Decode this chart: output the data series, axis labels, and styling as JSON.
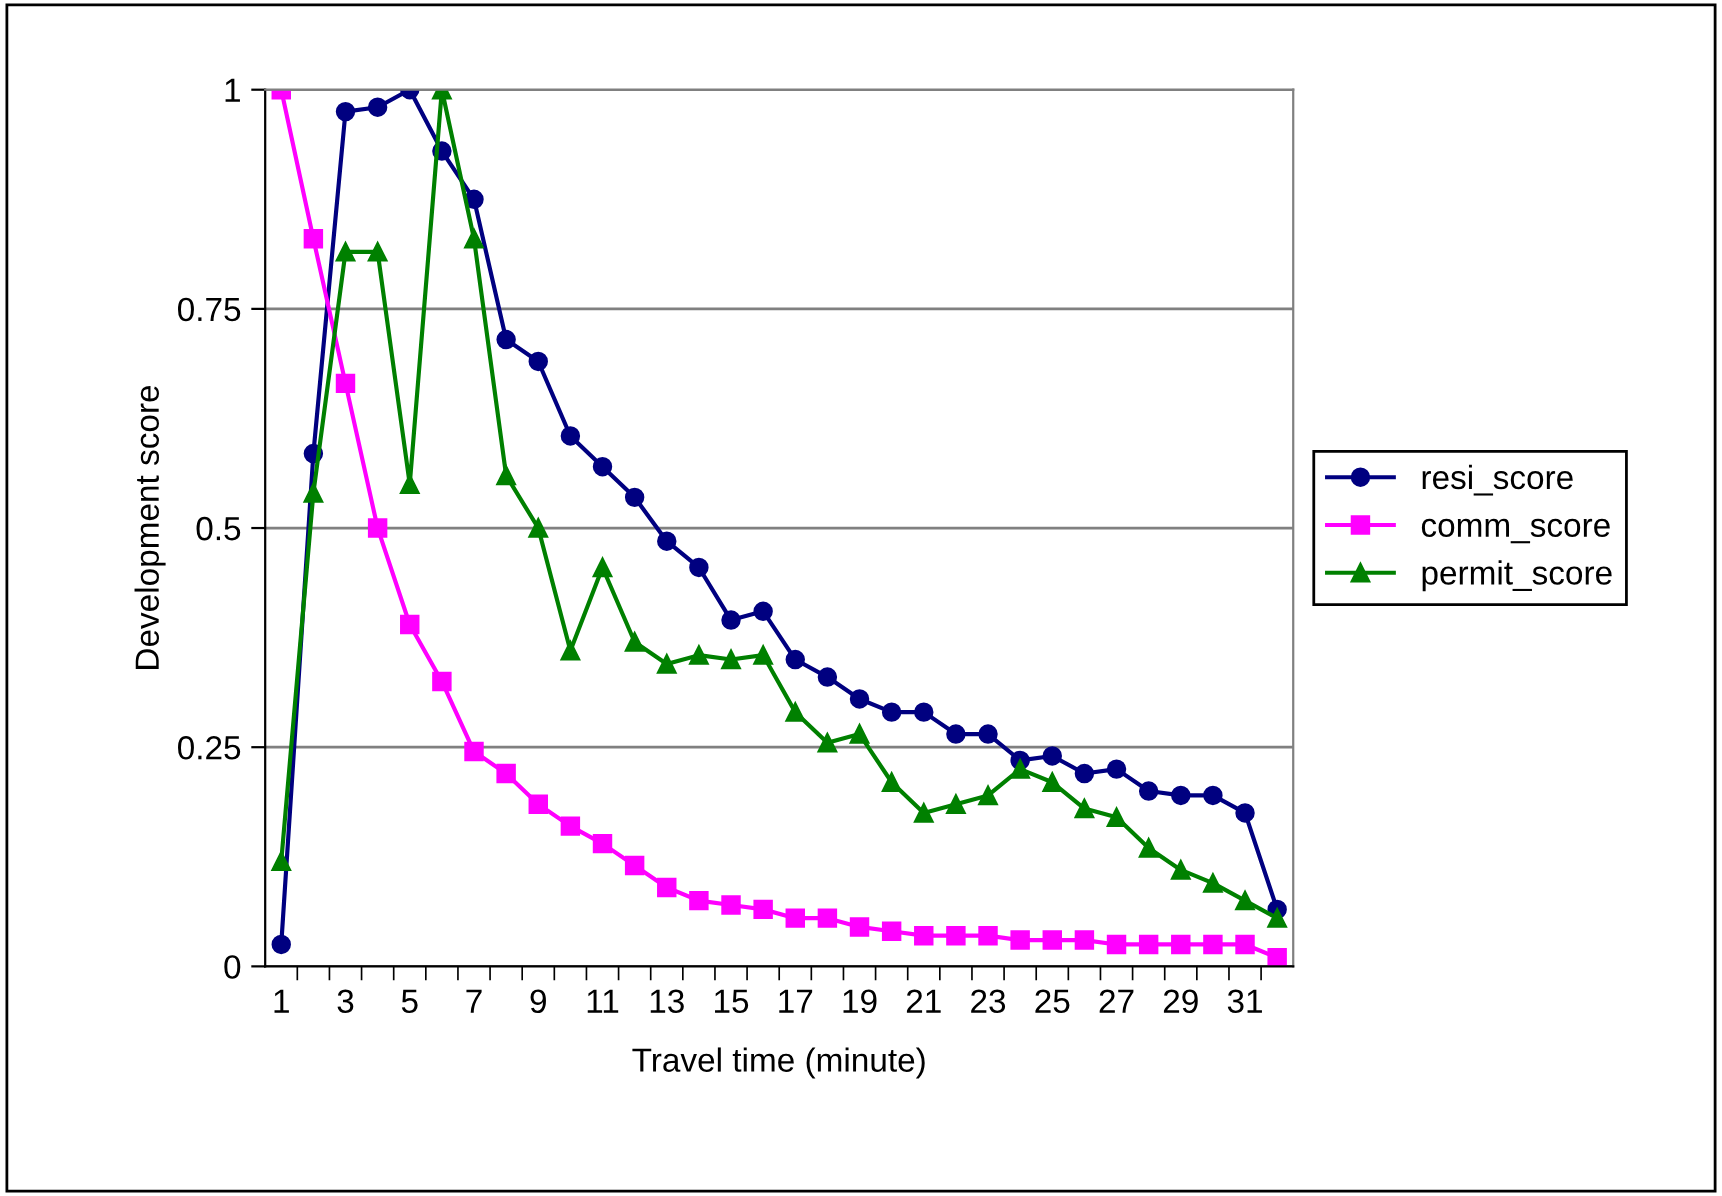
{
  "chart_data": {
    "type": "line",
    "xlabel": "Travel time (minute)",
    "ylabel": "Development score",
    "categories": [
      "1",
      null,
      "3",
      null,
      "5",
      null,
      "7",
      null,
      "9",
      null,
      "11",
      null,
      "13",
      null,
      "15",
      null,
      "17",
      null,
      "19",
      null,
      "21",
      null,
      "23",
      null,
      "25",
      null,
      "27",
      null,
      "29",
      null,
      "31",
      null
    ],
    "series": [
      {
        "name": "resi_score",
        "color": "#000080",
        "marker": "circle",
        "values": [
          0.025,
          0.585,
          0.975,
          0.98,
          1.0,
          0.93,
          0.875,
          0.715,
          0.69,
          0.605,
          0.57,
          0.535,
          0.485,
          0.455,
          0.395,
          0.405,
          0.35,
          0.33,
          0.305,
          0.29,
          0.29,
          0.265,
          0.265,
          0.235,
          0.24,
          0.22,
          0.225,
          0.2,
          0.195,
          0.195,
          0.175,
          0.065
        ]
      },
      {
        "name": "comm_score",
        "color": "#ff00ff",
        "marker": "square",
        "values": [
          1.0,
          0.83,
          0.665,
          0.5,
          0.39,
          0.325,
          0.245,
          0.22,
          0.185,
          0.16,
          0.14,
          0.115,
          0.09,
          0.075,
          0.07,
          0.065,
          0.055,
          0.055,
          0.045,
          0.04,
          0.035,
          0.035,
          0.035,
          0.03,
          0.03,
          0.03,
          0.025,
          0.025,
          0.025,
          0.025,
          0.025,
          0.01
        ]
      },
      {
        "name": "permit_score",
        "color": "#008000",
        "marker": "triangle",
        "values": [
          0.12,
          0.54,
          0.815,
          0.815,
          0.55,
          1.0,
          0.83,
          0.56,
          0.5,
          0.36,
          0.455,
          0.37,
          0.345,
          0.355,
          0.35,
          0.355,
          0.29,
          0.255,
          0.265,
          0.21,
          0.175,
          0.185,
          0.195,
          0.225,
          0.21,
          0.18,
          0.17,
          0.135,
          0.11,
          0.095,
          0.075,
          0.055
        ]
      }
    ],
    "ylim": [
      0,
      1
    ],
    "yticks": [
      0,
      0.25,
      0.5,
      0.75,
      1
    ],
    "grid": "y",
    "legend": "right",
    "line_style": "solid"
  }
}
